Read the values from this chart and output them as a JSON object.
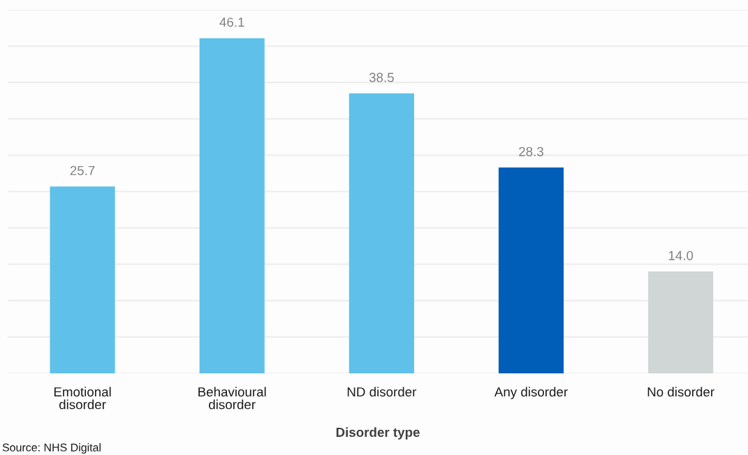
{
  "chart_data": {
    "type": "bar",
    "xlabel": "Disorder type",
    "categories": [
      "Emotional\ndisorder",
      "Behavioural\ndisorder",
      "ND disorder",
      "Any disorder",
      "No disorder"
    ],
    "values": [
      25.7,
      46.1,
      38.5,
      28.3,
      14.0
    ],
    "value_labels": [
      "25.7",
      "46.1",
      "38.5",
      "28.3",
      "14.0"
    ],
    "colors": [
      "#5fc1e9",
      "#5fc1e9",
      "#5fc1e9",
      "#005eb8",
      "#d0d5d6"
    ],
    "ylim": [
      0,
      50
    ],
    "yticks": [
      {
        "value": 0,
        "label": null
      },
      {
        "value": 5,
        "label": null
      },
      {
        "value": 10,
        "label": null
      },
      {
        "value": 15,
        "label": null
      },
      {
        "value": 20,
        "label": null
      },
      {
        "value": 25,
        "label": null
      },
      {
        "value": 30,
        "label": null
      },
      {
        "value": 35,
        "label": null
      },
      {
        "value": 40,
        "label": null
      },
      {
        "value": 45,
        "label": null
      },
      {
        "value": 50,
        "label": null
      }
    ],
    "grid": "y",
    "tick_labels": "x",
    "annotations": [
      "Source: NHS Digital"
    ]
  }
}
